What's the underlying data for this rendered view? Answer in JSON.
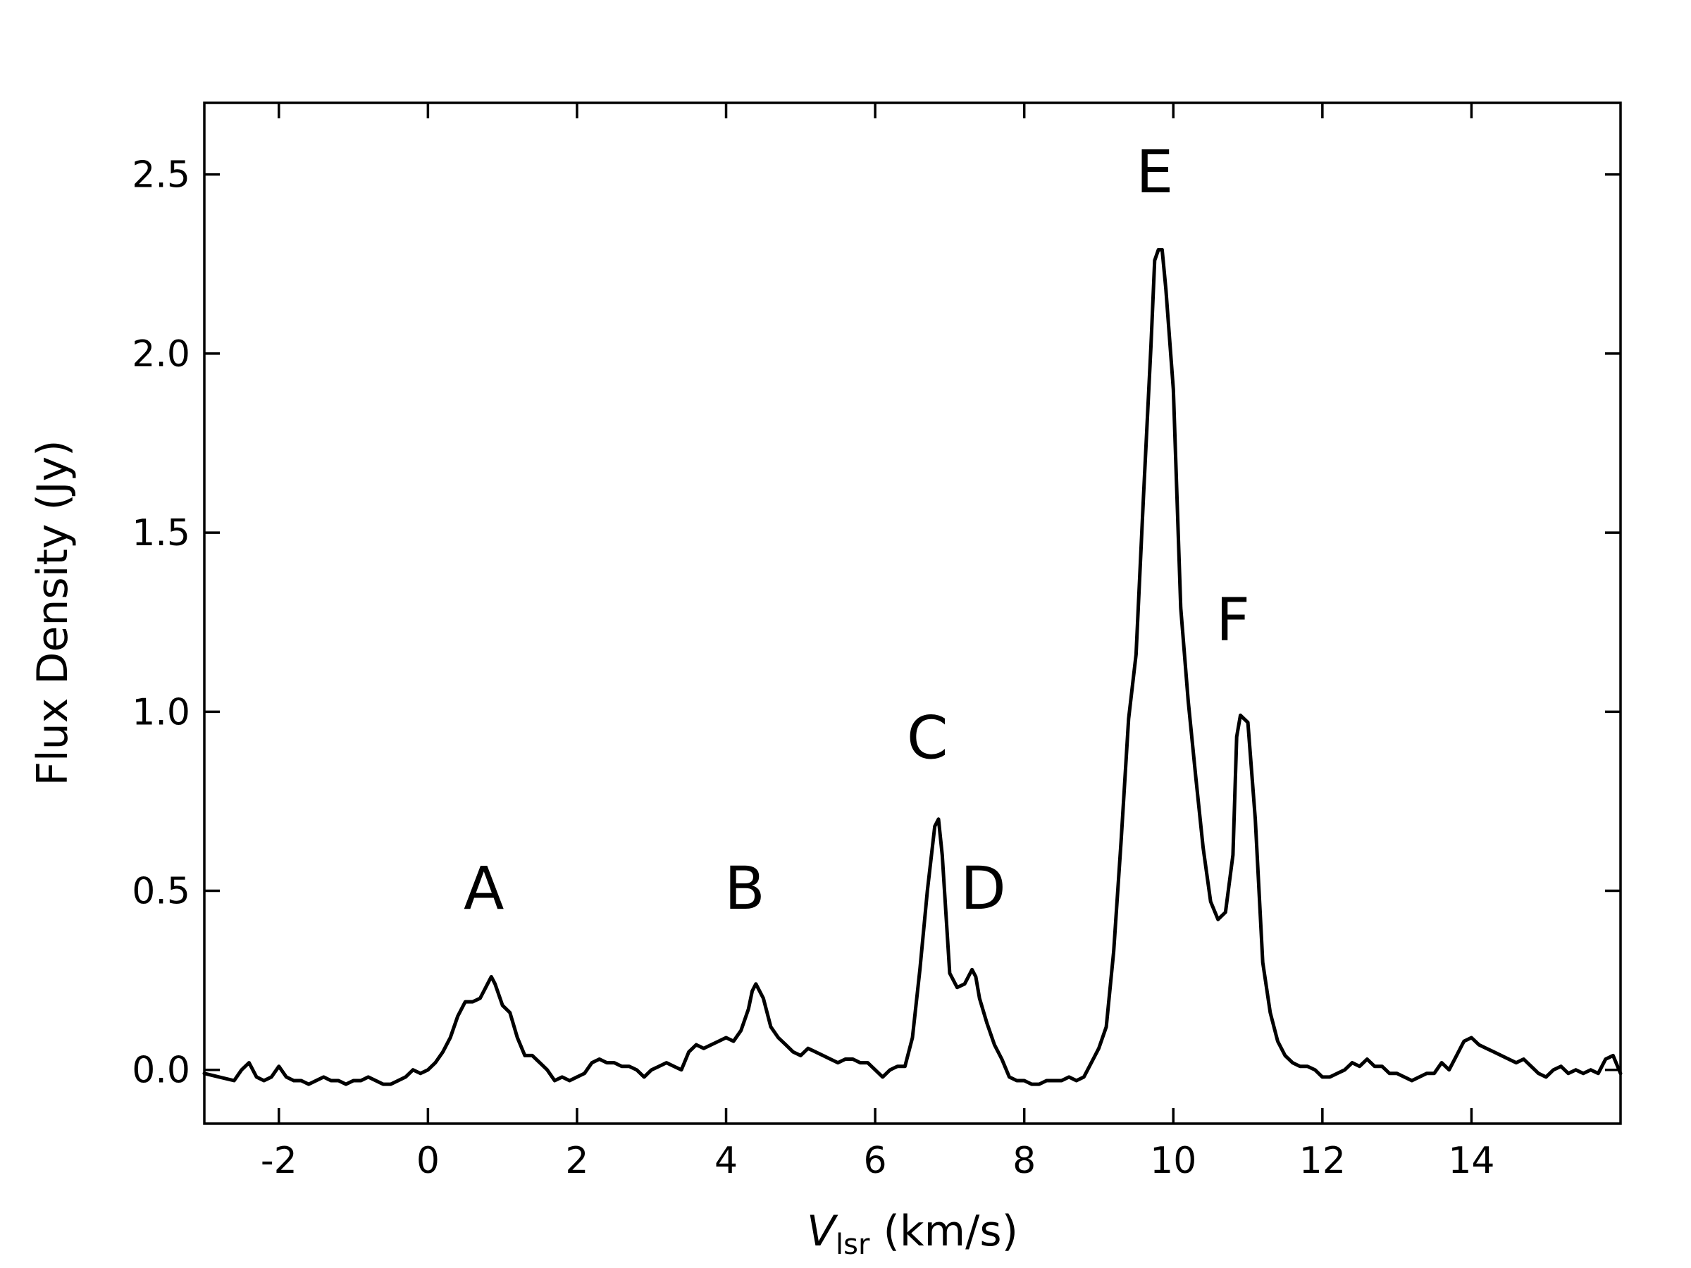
{
  "chart_data": {
    "type": "line",
    "title": "",
    "xlabel_main": "V",
    "xlabel_sub": "lsr",
    "xlabel_unit": " (km/s)",
    "ylabel": "Flux Density (Jy)",
    "xlim": [
      -3.0,
      16.0
    ],
    "ylim": [
      -0.15,
      2.7
    ],
    "xticks": [
      -2,
      0,
      2,
      4,
      6,
      8,
      10,
      12,
      14
    ],
    "xtick_labels": [
      "-2",
      "0",
      "2",
      "4",
      "6",
      "8",
      "10",
      "12",
      "14"
    ],
    "yticks": [
      0.0,
      0.5,
      1.0,
      1.5,
      2.0,
      2.5
    ],
    "ytick_labels": [
      "0.0",
      "0.5",
      "1.0",
      "1.5",
      "2.0",
      "2.5"
    ],
    "grid": false,
    "color": "#000000",
    "series": [
      {
        "x": [
          -3.0,
          -2.8,
          -2.6,
          -2.5,
          -2.4,
          -2.3,
          -2.2,
          -2.1,
          -2.0,
          -1.9,
          -1.8,
          -1.7,
          -1.6,
          -1.5,
          -1.4,
          -1.3,
          -1.2,
          -1.1,
          -1.0,
          -0.9,
          -0.8,
          -0.7,
          -0.6,
          -0.5,
          -0.4,
          -0.3,
          -0.2,
          -0.1,
          0.0,
          0.1,
          0.2,
          0.3,
          0.4,
          0.5,
          0.6,
          0.7,
          0.8,
          0.85,
          0.9,
          1.0,
          1.1,
          1.2,
          1.3,
          1.4,
          1.5,
          1.6,
          1.7,
          1.8,
          1.9,
          2.0,
          2.1,
          2.2,
          2.3,
          2.4,
          2.5,
          2.6,
          2.7,
          2.8,
          2.9,
          3.0,
          3.1,
          3.2,
          3.3,
          3.4,
          3.5,
          3.6,
          3.7,
          3.8,
          3.9,
          4.0,
          4.1,
          4.2,
          4.3,
          4.35,
          4.4,
          4.5,
          4.6,
          4.7,
          4.8,
          4.9,
          5.0,
          5.1,
          5.2,
          5.3,
          5.4,
          5.5,
          5.6,
          5.7,
          5.8,
          5.9,
          6.0,
          6.1,
          6.2,
          6.3,
          6.4,
          6.5,
          6.6,
          6.7,
          6.8,
          6.85,
          6.9,
          7.0,
          7.1,
          7.2,
          7.3,
          7.35,
          7.4,
          7.5,
          7.6,
          7.7,
          7.8,
          7.9,
          8.0,
          8.1,
          8.2,
          8.3,
          8.4,
          8.5,
          8.6,
          8.7,
          8.8,
          8.9,
          9.0,
          9.1,
          9.2,
          9.3,
          9.4,
          9.5,
          9.6,
          9.7,
          9.75,
          9.8,
          9.85,
          9.9,
          10.0,
          10.1,
          10.2,
          10.3,
          10.4,
          10.5,
          10.6,
          10.7,
          10.8,
          10.85,
          10.9,
          11.0,
          11.1,
          11.2,
          11.3,
          11.4,
          11.5,
          11.6,
          11.7,
          11.8,
          11.9,
          12.0,
          12.1,
          12.2,
          12.3,
          12.4,
          12.5,
          12.6,
          12.7,
          12.8,
          12.9,
          13.0,
          13.1,
          13.2,
          13.3,
          13.4,
          13.5,
          13.6,
          13.7,
          13.8,
          13.9,
          14.0,
          14.1,
          14.2,
          14.3,
          14.4,
          14.5,
          14.6,
          14.7,
          14.8,
          14.9,
          15.0,
          15.1,
          15.2,
          15.3,
          15.4,
          15.5,
          15.6,
          15.7,
          15.8,
          15.9,
          16.0
        ],
        "y": [
          -0.01,
          -0.02,
          -0.03,
          0.0,
          0.02,
          -0.02,
          -0.03,
          -0.02,
          0.01,
          -0.02,
          -0.03,
          -0.03,
          -0.04,
          -0.03,
          -0.02,
          -0.03,
          -0.03,
          -0.04,
          -0.03,
          -0.03,
          -0.02,
          -0.03,
          -0.04,
          -0.04,
          -0.03,
          -0.02,
          0.0,
          -0.01,
          0.0,
          0.02,
          0.05,
          0.09,
          0.15,
          0.19,
          0.19,
          0.2,
          0.24,
          0.26,
          0.24,
          0.18,
          0.16,
          0.09,
          0.04,
          0.04,
          0.02,
          0.0,
          -0.03,
          -0.02,
          -0.03,
          -0.02,
          -0.01,
          0.02,
          0.03,
          0.02,
          0.02,
          0.01,
          0.01,
          0.0,
          -0.02,
          0.0,
          0.01,
          0.02,
          0.01,
          0.0,
          0.05,
          0.07,
          0.06,
          0.07,
          0.08,
          0.09,
          0.08,
          0.11,
          0.17,
          0.22,
          0.24,
          0.2,
          0.12,
          0.09,
          0.07,
          0.05,
          0.04,
          0.06,
          0.05,
          0.04,
          0.03,
          0.02,
          0.03,
          0.03,
          0.02,
          0.02,
          0.0,
          -0.02,
          0.0,
          0.01,
          0.01,
          0.09,
          0.28,
          0.5,
          0.68,
          0.7,
          0.6,
          0.27,
          0.23,
          0.24,
          0.28,
          0.26,
          0.2,
          0.13,
          0.07,
          0.03,
          -0.02,
          -0.03,
          -0.03,
          -0.04,
          -0.04,
          -0.03,
          -0.03,
          -0.03,
          -0.02,
          -0.03,
          -0.02,
          0.02,
          0.06,
          0.12,
          0.33,
          0.64,
          0.98,
          1.16,
          1.6,
          2.02,
          2.26,
          2.29,
          2.29,
          2.18,
          1.9,
          1.29,
          1.03,
          0.82,
          0.62,
          0.47,
          0.42,
          0.44,
          0.6,
          0.93,
          0.99,
          0.97,
          0.7,
          0.3,
          0.16,
          0.08,
          0.04,
          0.02,
          0.01,
          0.01,
          0.0,
          -0.02,
          -0.02,
          -0.01,
          0.0,
          0.02,
          0.01,
          0.03,
          0.01,
          0.01,
          -0.01,
          -0.01,
          -0.02,
          -0.03,
          -0.02,
          -0.01,
          -0.01,
          0.02,
          0.0,
          0.04,
          0.08,
          0.09,
          0.07,
          0.06,
          0.05,
          0.04,
          0.03,
          0.02,
          0.03,
          0.01,
          -0.01,
          -0.02,
          0.0,
          0.01,
          -0.01,
          0.0,
          -0.01,
          0.0,
          -0.01,
          0.03,
          0.04,
          -0.01
        ]
      }
    ],
    "annotations": [
      {
        "text": "A",
        "x": 0.75,
        "y": 0.45
      },
      {
        "text": "B",
        "x": 4.25,
        "y": 0.45
      },
      {
        "text": "C",
        "x": 6.7,
        "y": 0.87
      },
      {
        "text": "D",
        "x": 7.45,
        "y": 0.45
      },
      {
        "text": "E",
        "x": 9.75,
        "y": 2.45
      },
      {
        "text": "F",
        "x": 10.8,
        "y": 1.2
      }
    ]
  }
}
